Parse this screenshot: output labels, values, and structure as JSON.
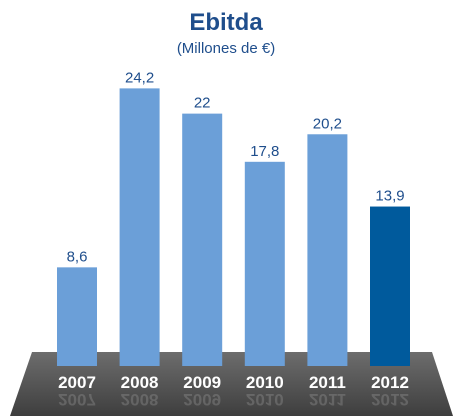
{
  "chart_data": {
    "type": "bar",
    "title": "Ebitda",
    "subtitle": "(Millones de €)",
    "categories": [
      "2007",
      "2008",
      "2009",
      "2010",
      "2011",
      "2012"
    ],
    "values": [
      8.6,
      24.2,
      22,
      17.8,
      20.2,
      13.9
    ],
    "value_labels": [
      "8,6",
      "24,2",
      "22",
      "17,8",
      "20,2",
      "13,9"
    ],
    "ylim": [
      0,
      26.5
    ],
    "grid": false,
    "colors": {
      "bar": "#6b9fd8",
      "highlight_bar": "#005a9c",
      "text": "#1f4e8c",
      "floor": "#555555"
    },
    "highlight_index": 5
  }
}
